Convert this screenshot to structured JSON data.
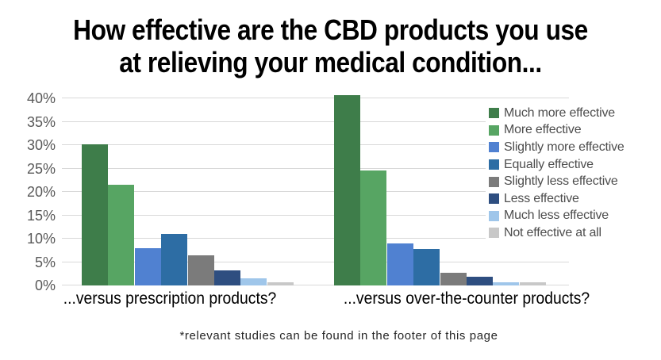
{
  "title": {
    "line1": "How effective are the CBD products you use",
    "line2": "at relieving your medical condition..."
  },
  "footer_note": "*relevant studies can be found in the footer of this page",
  "colors": {
    "background": "#ffffff",
    "gridline": "#d9d9d9",
    "axis_text": "#595959",
    "legend_text": "#4d4d4d",
    "title_text": "#000000"
  },
  "chart_data": {
    "type": "bar",
    "title": "How effective are the CBD products you use at relieving your medical condition...",
    "categories": [
      "...versus prescription products?",
      "...versus over-the-counter products?"
    ],
    "series": [
      {
        "name": "Much more effective",
        "color": "#3e7d4a",
        "values": [
          30.2,
          40.7
        ]
      },
      {
        "name": "More effective",
        "color": "#57a563",
        "values": [
          21.6,
          24.6
        ]
      },
      {
        "name": "Slightly more effective",
        "color": "#5081d1",
        "values": [
          7.9,
          9.0
        ]
      },
      {
        "name": "Equally effective",
        "color": "#2d6da4",
        "values": [
          11.1,
          7.8
        ]
      },
      {
        "name": "Slightly less effective",
        "color": "#7b7b7b",
        "values": [
          6.5,
          2.7
        ]
      },
      {
        "name": "Less effective",
        "color": "#2e4e80",
        "values": [
          3.2,
          1.9
        ]
      },
      {
        "name": "Much less effective",
        "color": "#9fc6ea",
        "values": [
          1.6,
          0.7
        ]
      },
      {
        "name": "Not effective at all",
        "color": "#c8c8c8",
        "values": [
          0.6,
          0.6
        ]
      }
    ],
    "xlabel": "",
    "ylabel": "",
    "y_ticks": [
      "0%",
      "5%",
      "10%",
      "15%",
      "20%",
      "25%",
      "30%",
      "35%",
      "40%"
    ],
    "ylim": [
      0,
      40
    ],
    "grid": true,
    "legend_position": "right",
    "bar_gap_within_group": 0
  }
}
